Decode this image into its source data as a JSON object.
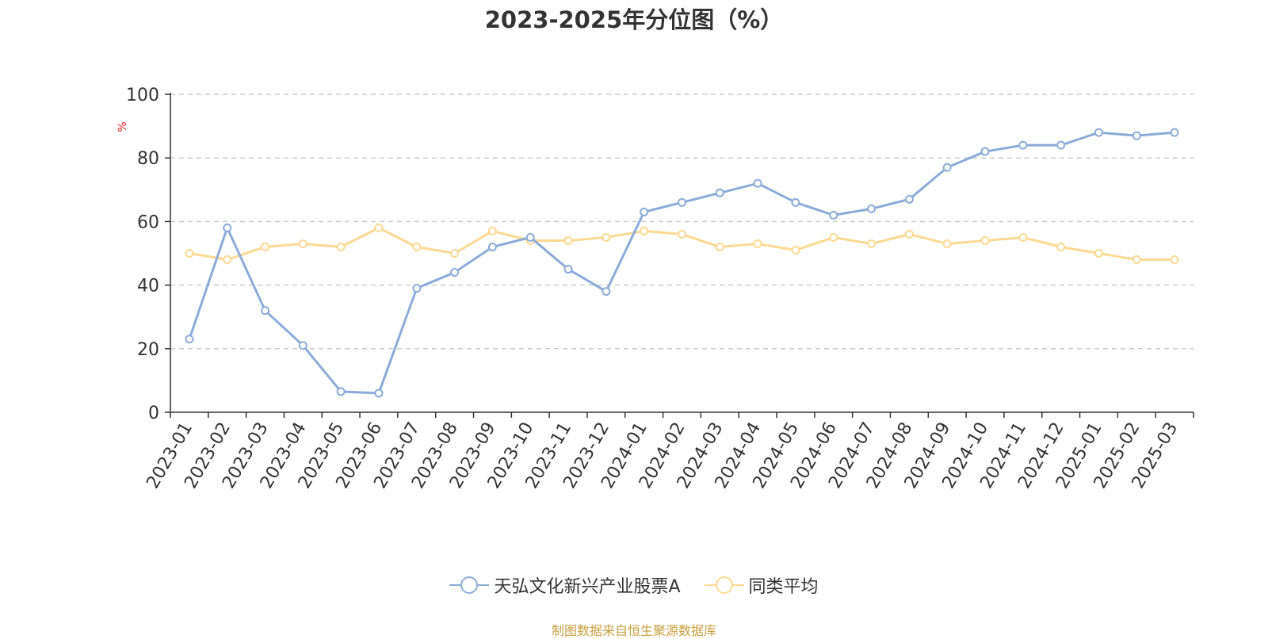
{
  "chart_data": {
    "type": "line",
    "title": "2023-2025年分位图（%）",
    "ylabel": "%",
    "ylim": [
      0,
      100
    ],
    "yticks": [
      0,
      20,
      40,
      60,
      80,
      100
    ],
    "grid": true,
    "legend_position": "bottom",
    "categories": [
      "2023-01",
      "2023-02",
      "2023-03",
      "2023-04",
      "2023-05",
      "2023-06",
      "2023-07",
      "2023-08",
      "2023-09",
      "2023-10",
      "2023-11",
      "2023-12",
      "2024-01",
      "2024-02",
      "2024-03",
      "2024-04",
      "2024-05",
      "2024-06",
      "2024-07",
      "2024-08",
      "2024-09",
      "2024-10",
      "2024-11",
      "2024-12",
      "2025-01",
      "2025-02",
      "2025-03"
    ],
    "series": [
      {
        "name": "天弘文化新兴产业股票A",
        "color": "#8dabd9",
        "values": [
          23,
          58,
          32,
          21,
          6.5,
          6,
          39,
          44,
          52,
          55,
          45,
          38,
          63,
          66,
          69,
          72,
          66,
          62,
          64,
          67,
          77,
          82,
          84,
          84,
          88,
          87,
          88
        ]
      },
      {
        "name": "同类平均",
        "color": "#fbd993",
        "values": [
          50,
          48,
          52,
          53,
          52,
          58,
          52,
          50,
          57,
          54,
          54,
          55,
          57,
          56,
          52,
          53,
          51,
          55,
          53,
          56,
          53,
          54,
          55,
          52,
          50,
          48,
          48
        ]
      }
    ]
  },
  "source_text": "制图数据来自恒生聚源数据库",
  "source_color": "#c8a040",
  "ylabel_color": "#e02020"
}
